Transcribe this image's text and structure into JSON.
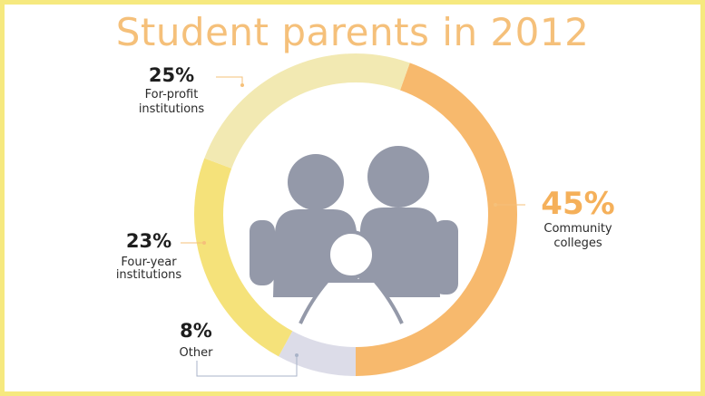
{
  "title": "Student parents in 2012",
  "colors": {
    "border": "#f6e97f",
    "title": "#f5c07a",
    "silhouette": "#9499a9"
  },
  "center_graphic": "family-silhouette-icon",
  "chart_data": {
    "type": "pie",
    "donut": true,
    "title": "Student parents in 2012",
    "slices": [
      {
        "label": "Community colleges",
        "value": 45,
        "display": "45%",
        "color": "#f7b96d"
      },
      {
        "label": "Other",
        "value": 8,
        "display": "8%",
        "color": "#dcdce8"
      },
      {
        "label": "Four-year institutions",
        "value": 23,
        "display": "23%",
        "color": "#f5e27a"
      },
      {
        "label": "For-profit institutions",
        "value": 25,
        "display": "25%",
        "color": "#f2e9b2"
      }
    ],
    "label_lines": {
      "Community colleges": [
        "Community",
        "colleges"
      ],
      "Other": [
        "Other"
      ],
      "Four-year institutions": [
        "Four-year",
        "institutions"
      ],
      "For-profit institutions": [
        "For-profit",
        "institutions"
      ]
    }
  }
}
